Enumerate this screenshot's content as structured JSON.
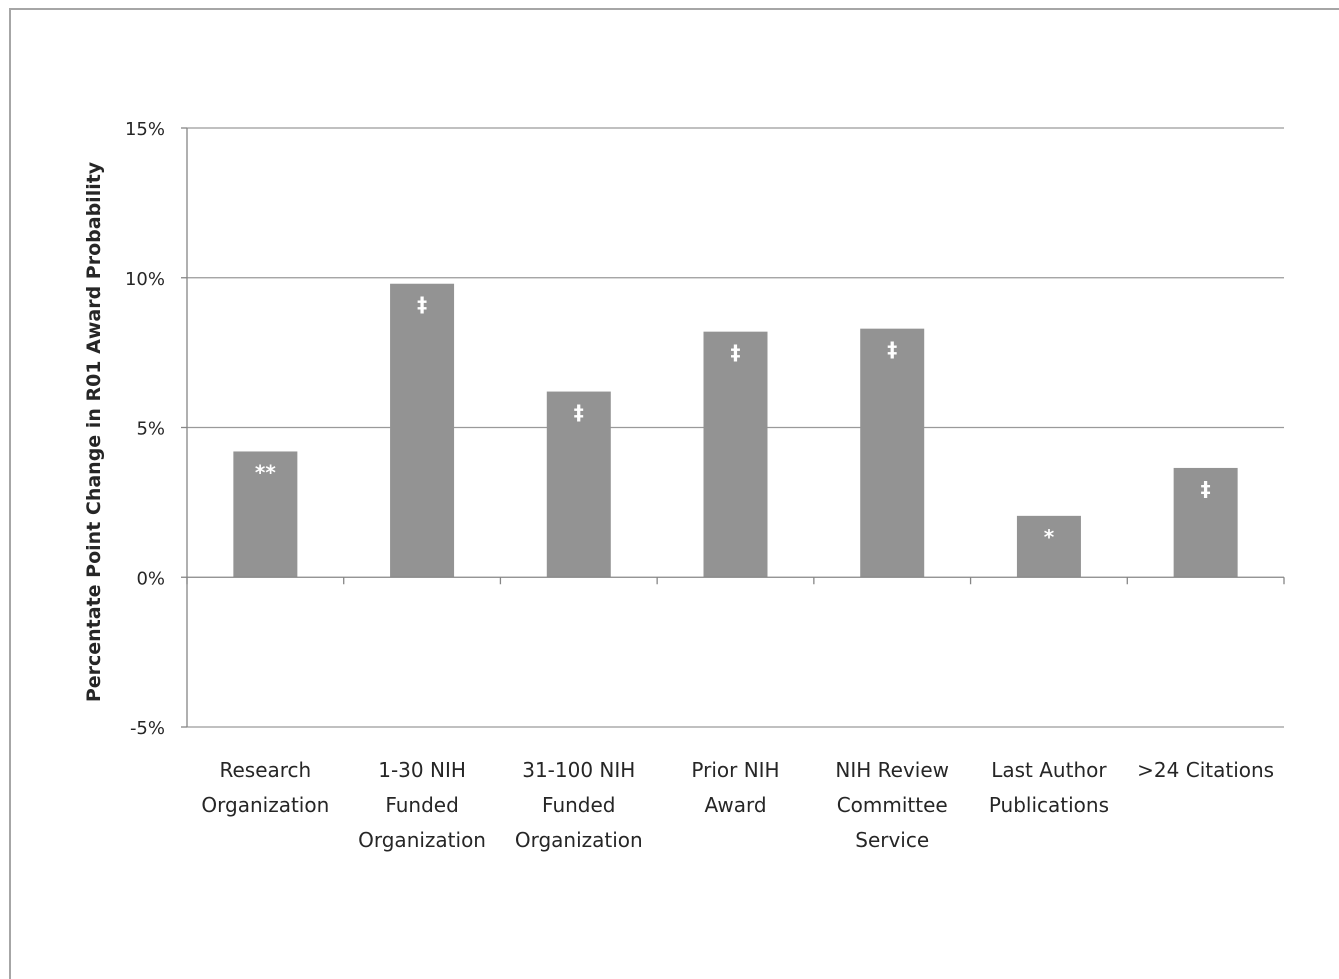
{
  "chart_data": {
    "type": "bar",
    "title": "",
    "xlabel": "",
    "ylabel": "Percentate Point Change in R01 Award Probability",
    "ylim": [
      -5,
      15
    ],
    "yticks": [
      -5,
      0,
      5,
      10,
      15
    ],
    "ytick_labels": [
      "-5%",
      "0%",
      "5%",
      "10%",
      "15%"
    ],
    "grid": true,
    "legend": "none",
    "categories": [
      [
        "Research",
        "Organization"
      ],
      [
        "1-30 NIH",
        "Funded",
        "Organization"
      ],
      [
        "31-100 NIH",
        "Funded",
        "Organization"
      ],
      [
        "Prior NIH",
        "Award"
      ],
      [
        "NIH Review",
        "Committee",
        "Service"
      ],
      [
        "Last Author",
        "Publications"
      ],
      [
        ">24 Citations"
      ]
    ],
    "values": [
      4.2,
      9.8,
      6.2,
      8.2,
      8.3,
      2.05,
      3.65
    ],
    "significance": [
      "**",
      "‡",
      "‡",
      "‡",
      "‡",
      "*",
      "‡"
    ],
    "colors": {
      "bar": "#939393",
      "grid": "#9a9a9a",
      "axis": "#868686",
      "text": "#262626"
    }
  }
}
